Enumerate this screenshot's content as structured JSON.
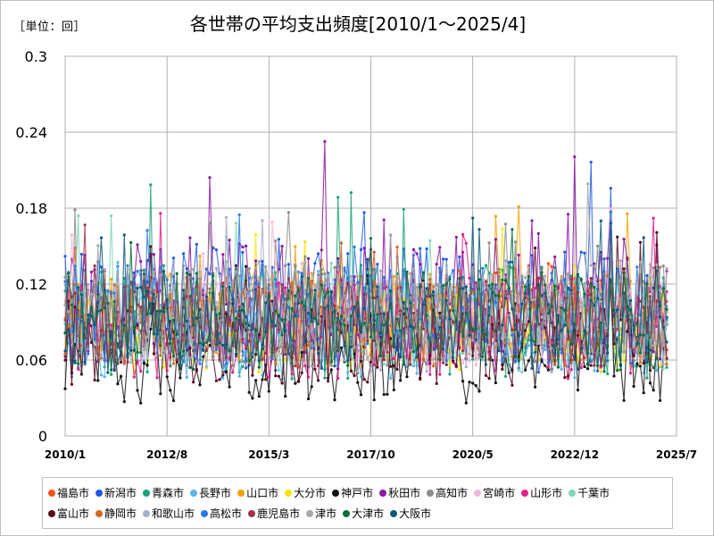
{
  "unit_label": "［単位：回］",
  "chart_data": {
    "type": "line",
    "title": "各世帯の平均支出頻度[2010/1～2025/4]",
    "xlabel": "",
    "ylabel": "",
    "x_start": "2010/1",
    "x_end": "2025/4",
    "x_ticks": [
      "2010/1",
      "2012/8",
      "2015/3",
      "2017/10",
      "2020/5",
      "2022/12",
      "2025/7"
    ],
    "y_ticks": [
      "0",
      "0.06",
      "0.12",
      "0.18",
      "0.24",
      "0.3"
    ],
    "ylim": [
      0,
      0.3
    ],
    "grid": true,
    "legend_position": "bottom",
    "series": [
      {
        "name": "福島市",
        "color": "#f4511e",
        "base": 0.095,
        "amp": 0.035,
        "seed": 1
      },
      {
        "name": "新潟市",
        "color": "#1e5adf",
        "base": 0.1,
        "amp": 0.05,
        "seed": 2
      },
      {
        "name": "青森市",
        "color": "#1aa37a",
        "base": 0.09,
        "amp": 0.045,
        "seed": 3
      },
      {
        "name": "長野市",
        "color": "#5ab4e8",
        "base": 0.08,
        "amp": 0.035,
        "seed": 4
      },
      {
        "name": "山口市",
        "color": "#f0a30a",
        "base": 0.095,
        "amp": 0.035,
        "seed": 5
      },
      {
        "name": "大分市",
        "color": "#f5e50a",
        "base": 0.085,
        "amp": 0.035,
        "seed": 6
      },
      {
        "name": "神戸市",
        "color": "#111111",
        "base": 0.06,
        "amp": 0.035,
        "seed": 7
      },
      {
        "name": "秋田市",
        "color": "#8b1aa3",
        "base": 0.11,
        "amp": 0.05,
        "seed": 8
      },
      {
        "name": "高知市",
        "color": "#8c8c8c",
        "base": 0.095,
        "amp": 0.04,
        "seed": 9
      },
      {
        "name": "宮崎市",
        "color": "#f4b8d8",
        "base": 0.09,
        "amp": 0.035,
        "seed": 10
      },
      {
        "name": "山形市",
        "color": "#e0218a",
        "base": 0.085,
        "amp": 0.04,
        "seed": 11
      },
      {
        "name": "千葉市",
        "color": "#7fd6b8",
        "base": 0.085,
        "amp": 0.035,
        "seed": 12
      },
      {
        "name": "富山市",
        "color": "#5a0a1e",
        "base": 0.075,
        "amp": 0.035,
        "seed": 13
      },
      {
        "name": "静岡市",
        "color": "#d2691e",
        "base": 0.09,
        "amp": 0.035,
        "seed": 14
      },
      {
        "name": "和歌山市",
        "color": "#a9adc9",
        "base": 0.085,
        "amp": 0.035,
        "seed": 15
      },
      {
        "name": "高松市",
        "color": "#2a7ae8",
        "base": 0.095,
        "amp": 0.04,
        "seed": 16
      },
      {
        "name": "鹿児島市",
        "color": "#a0304a",
        "base": 0.09,
        "amp": 0.035,
        "seed": 17
      },
      {
        "name": "津市",
        "color": "#a8a8a8",
        "base": 0.1,
        "amp": 0.04,
        "seed": 18
      },
      {
        "name": "大津市",
        "color": "#0a6e3a",
        "base": 0.09,
        "amp": 0.04,
        "seed": 19
      },
      {
        "name": "大阪市",
        "color": "#0a5a7a",
        "base": 0.085,
        "amp": 0.035,
        "seed": 20
      }
    ]
  }
}
